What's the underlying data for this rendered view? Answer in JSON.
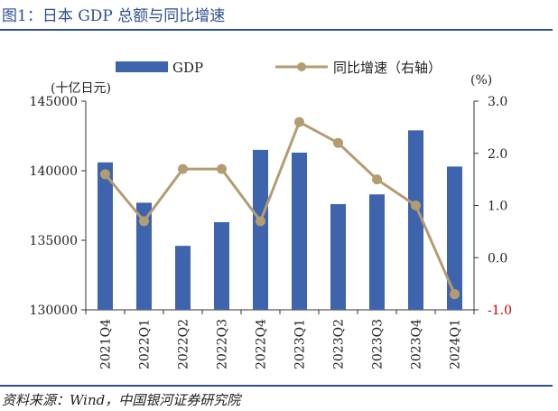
{
  "header": {
    "title": "图1：日本 GDP 总额与同比增速"
  },
  "footer": {
    "source": "资料来源：Wind，中国银河证券研究院"
  },
  "colors": {
    "bar": "#3d64ad",
    "line": "#b39d70",
    "negative_tick": "#cc0000",
    "title": "#2f4f8f"
  },
  "chart_data": {
    "type": "bar+line",
    "categories": [
      "2021Q4",
      "2022Q1",
      "2022Q2",
      "2022Q3",
      "2022Q4",
      "2023Q1",
      "2023Q2",
      "2023Q3",
      "2023Q4",
      "2024Q1"
    ],
    "series": [
      {
        "name": "GDP",
        "type": "bar",
        "axis": "left",
        "values": [
          140600,
          137700,
          134600,
          136300,
          141500,
          141300,
          137600,
          138300,
          142900,
          140300
        ]
      },
      {
        "name": "同比增速（右轴）",
        "type": "line",
        "axis": "right",
        "values": [
          1.6,
          0.7,
          1.7,
          1.7,
          0.7,
          2.6,
          2.2,
          1.5,
          1.0,
          -0.7
        ]
      }
    ],
    "y_left": {
      "label": "(十亿日元)",
      "range": [
        130000,
        145000
      ],
      "ticks": [
        "130000",
        "135000",
        "140000",
        "145000"
      ]
    },
    "y_right": {
      "label": "(%)",
      "range": [
        -1.0,
        3.0
      ],
      "ticks": [
        "-1.0",
        "0.0",
        "1.0",
        "2.0",
        "3.0"
      ]
    },
    "legend": {
      "position": "top"
    },
    "grid": false
  }
}
